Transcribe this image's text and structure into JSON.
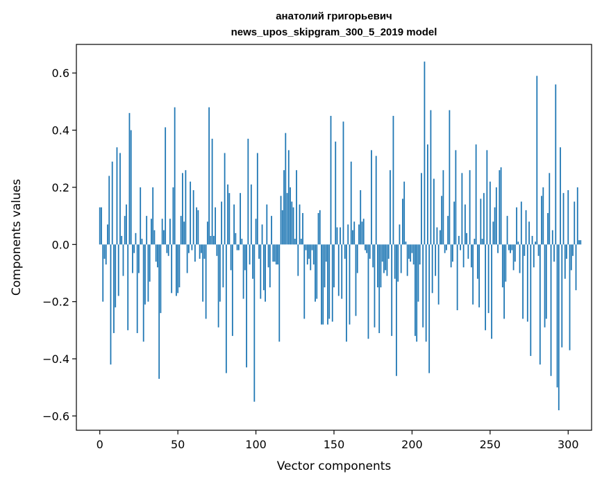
{
  "chart_data": {
    "type": "bar",
    "title": "анатолий григорьевич",
    "subtitle": "news_upos_skipgram_300_5_2019 model",
    "xlabel": "Vector components",
    "ylabel": "Components values",
    "xlim": [
      -15,
      315
    ],
    "ylim": [
      -0.65,
      0.7
    ],
    "x_ticks": [
      0,
      50,
      100,
      150,
      200,
      250,
      300
    ],
    "x_tick_labels": [
      "0",
      "50",
      "100",
      "150",
      "200",
      "250",
      "300"
    ],
    "y_ticks": [
      -0.6,
      -0.4,
      -0.2,
      0.0,
      0.2,
      0.4,
      0.6
    ],
    "y_tick_labels": [
      "−0.6",
      "−0.4",
      "−0.2",
      "0.0",
      "0.2",
      "0.4",
      "0.6"
    ],
    "bar_color": "#1f77b4",
    "grid": false,
    "values": [
      0.13,
      0.13,
      -0.2,
      -0.05,
      -0.07,
      0.07,
      0.24,
      -0.42,
      0.29,
      -0.31,
      -0.22,
      0.34,
      -0.18,
      0.32,
      0.03,
      -0.11,
      0.1,
      0.14,
      -0.3,
      0.46,
      0.4,
      -0.1,
      -0.03,
      0.04,
      -0.31,
      -0.1,
      0.2,
      0.02,
      -0.34,
      -0.21,
      0.1,
      -0.2,
      -0.13,
      0.09,
      0.2,
      0.05,
      -0.06,
      -0.08,
      -0.47,
      -0.24,
      0.09,
      0.05,
      0.41,
      -0.03,
      -0.04,
      0.09,
      -0.17,
      0.2,
      0.48,
      -0.18,
      -0.17,
      -0.15,
      0.1,
      0.25,
      0.08,
      0.26,
      -0.1,
      -0.03,
      0.22,
      -0.02,
      0.19,
      -0.06,
      0.13,
      0.12,
      -0.05,
      -0.03,
      -0.2,
      -0.05,
      -0.26,
      0.08,
      0.48,
      0.03,
      0.37,
      0.03,
      0.13,
      -0.04,
      -0.29,
      -0.2,
      0.15,
      -0.15,
      0.32,
      -0.45,
      0.21,
      0.18,
      -0.09,
      -0.32,
      0.14,
      0.04,
      -0.02,
      -0.02,
      0.18,
      0.02,
      -0.19,
      -0.09,
      -0.43,
      0.37,
      -0.07,
      0.21,
      -0.12,
      -0.55,
      0.09,
      0.32,
      -0.05,
      -0.19,
      0.07,
      -0.16,
      -0.2,
      0.14,
      -0.08,
      -0.15,
      0.1,
      -0.06,
      -0.06,
      -0.07,
      -0.07,
      -0.34,
      0.17,
      0.12,
      0.26,
      0.39,
      0.18,
      0.33,
      0.2,
      0.15,
      0.13,
      0.02,
      0.26,
      -0.11,
      0.14,
      0.02,
      0.11,
      -0.26,
      -0.02,
      -0.07,
      -0.05,
      -0.09,
      -0.02,
      -0.07,
      -0.2,
      -0.19,
      0.11,
      0.12,
      -0.28,
      -0.28,
      -0.15,
      -0.06,
      -0.28,
      -0.26,
      0.45,
      -0.27,
      -0.15,
      0.36,
      0.06,
      -0.18,
      0.06,
      -0.19,
      0.43,
      -0.05,
      -0.34,
      0.07,
      -0.28,
      0.29,
      0.05,
      0.08,
      -0.25,
      -0.1,
      0.07,
      0.19,
      0.08,
      0.09,
      -0.02,
      -0.03,
      -0.33,
      -0.05,
      0.33,
      -0.08,
      -0.29,
      0.31,
      -0.15,
      -0.31,
      -0.15,
      -0.06,
      -0.1,
      -0.09,
      -0.11,
      -0.05,
      0.26,
      -0.32,
      0.45,
      -0.12,
      -0.46,
      -0.13,
      0.07,
      -0.1,
      0.16,
      0.22,
      0.01,
      -0.11,
      -0.05,
      -0.06,
      -0.03,
      -0.07,
      -0.32,
      -0.34,
      -0.2,
      -0.07,
      0.25,
      -0.29,
      0.64,
      -0.34,
      0.35,
      -0.45,
      0.47,
      -0.17,
      0.23,
      -0.11,
      0.06,
      -0.21,
      0.05,
      0.17,
      0.26,
      -0.03,
      -0.02,
      0.1,
      0.47,
      -0.08,
      -0.06,
      0.15,
      0.33,
      -0.23,
      0.03,
      -0.02,
      0.25,
      -0.08,
      0.14,
      0.04,
      -0.05,
      0.26,
      -0.08,
      -0.21,
      0.02,
      0.35,
      -0.12,
      -0.22,
      0.16,
      0.02,
      0.18,
      -0.3,
      0.33,
      -0.24,
      0.22,
      -0.33,
      0.08,
      0.13,
      0.2,
      -0.03,
      0.26,
      0.27,
      -0.15,
      -0.26,
      -0.13,
      0.1,
      -0.02,
      -0.03,
      -0.02,
      -0.09,
      -0.06,
      0.13,
      0.01,
      -0.1,
      0.15,
      -0.26,
      -0.04,
      0.12,
      -0.27,
      0.08,
      -0.39,
      0.03,
      -0.08,
      0.01,
      0.59,
      -0.04,
      -0.42,
      0.17,
      0.2,
      -0.29,
      -0.26,
      0.11,
      0.25,
      -0.46,
      0.05,
      -0.06,
      0.56,
      -0.5,
      -0.58,
      0.34,
      -0.36,
      0.18,
      -0.12,
      -0.05,
      0.19,
      -0.37,
      -0.09,
      -0.04,
      0.15,
      -0.16,
      0.2,
      0.015,
      0.015
    ]
  }
}
